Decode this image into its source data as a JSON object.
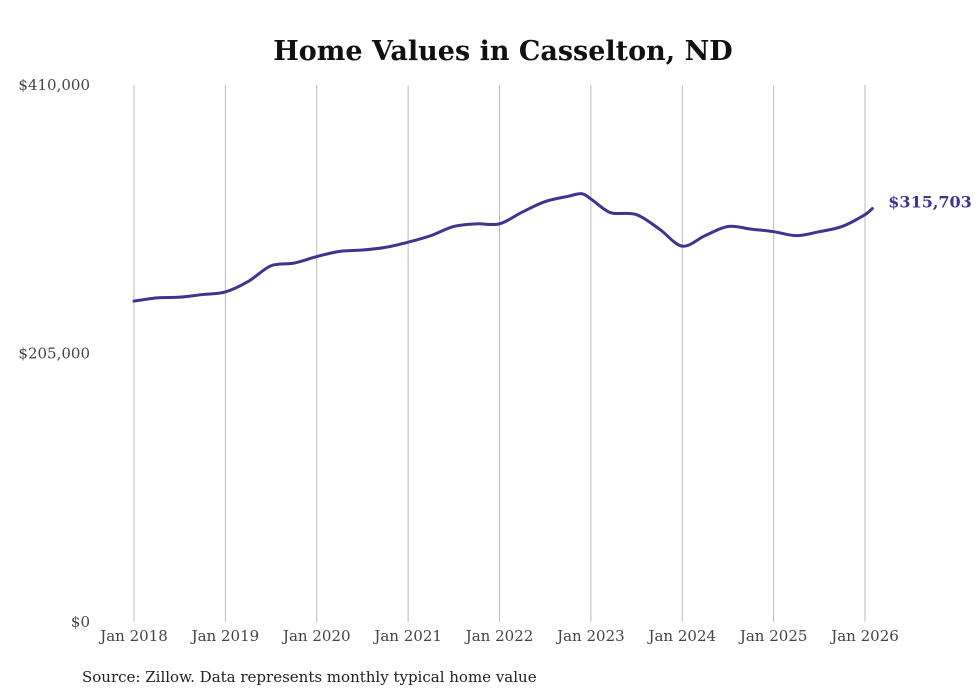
{
  "chart_data": {
    "type": "line",
    "title": "Home Values in Casselton, ND",
    "xlabel": "",
    "ylabel": "",
    "ylim": [
      0,
      410000
    ],
    "xlim": [
      2018.0,
      2026.08
    ],
    "y_ticks": [
      {
        "value": 0,
        "label": "$0"
      },
      {
        "value": 205000,
        "label": "$205,000"
      },
      {
        "value": 410000,
        "label": "$410,000"
      }
    ],
    "x_ticks": [
      {
        "value": 2018,
        "label": "Jan 2018"
      },
      {
        "value": 2019,
        "label": "Jan 2019"
      },
      {
        "value": 2020,
        "label": "Jan 2020"
      },
      {
        "value": 2021,
        "label": "Jan 2021"
      },
      {
        "value": 2022,
        "label": "Jan 2022"
      },
      {
        "value": 2023,
        "label": "Jan 2023"
      },
      {
        "value": 2024,
        "label": "Jan 2024"
      },
      {
        "value": 2025,
        "label": "Jan 2025"
      },
      {
        "value": 2026,
        "label": "Jan 2026"
      }
    ],
    "grid": "vertical",
    "series": [
      {
        "name": "Typical home value",
        "color": "#3d3590",
        "x": [
          2018.0,
          2018.25,
          2018.5,
          2018.75,
          2019.0,
          2019.25,
          2019.5,
          2019.75,
          2020.0,
          2020.25,
          2020.5,
          2020.75,
          2021.0,
          2021.25,
          2021.5,
          2021.75,
          2022.0,
          2022.25,
          2022.5,
          2022.75,
          2022.9,
          2023.0,
          2023.15,
          2023.25,
          2023.5,
          2023.75,
          2024.0,
          2024.25,
          2024.5,
          2024.75,
          2025.0,
          2025.25,
          2025.5,
          2025.75,
          2026.0,
          2026.08
        ],
        "values": [
          245000,
          247500,
          248000,
          250000,
          252000,
          260000,
          272000,
          274000,
          279000,
          283000,
          284000,
          286000,
          290000,
          295000,
          302000,
          304000,
          304000,
          313000,
          321000,
          325000,
          327000,
          323000,
          315000,
          312000,
          311000,
          300000,
          287000,
          295000,
          302000,
          300000,
          298000,
          295000,
          298000,
          302000,
          311000,
          315703
        ]
      }
    ],
    "end_label": "$315,703"
  },
  "source": "Source: Zillow. Data represents monthly typical home value"
}
